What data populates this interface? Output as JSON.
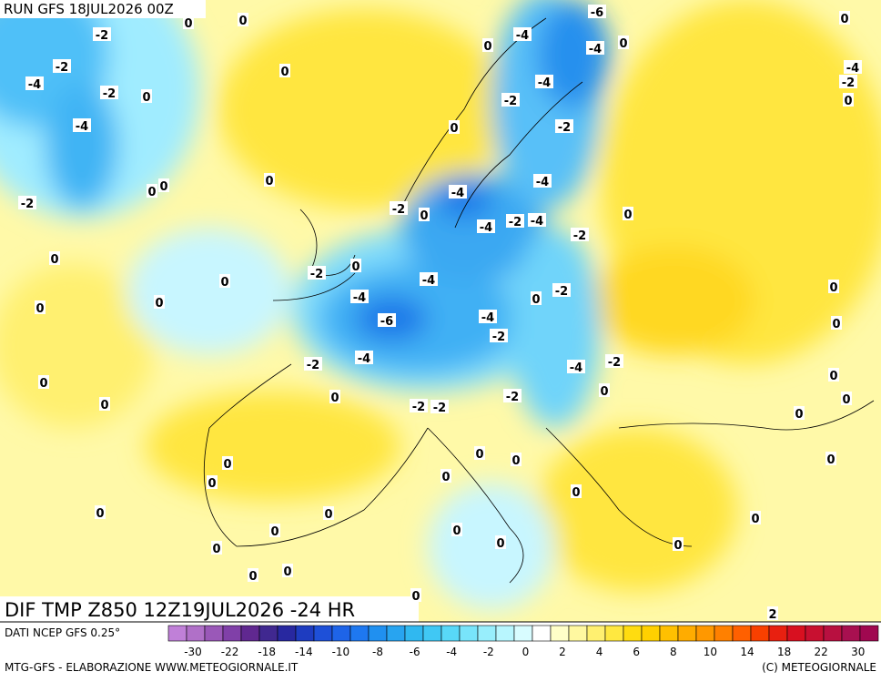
{
  "header": {
    "run": "RUN GFS 18JUL2026 00Z"
  },
  "map": {
    "title": "DIF TMP Z850 12Z19JUL2026 -24 HR",
    "contour_labels": [
      "-2",
      "0",
      "0",
      "-2",
      "-4",
      "-2",
      "0",
      "-4",
      "0",
      "0",
      "0",
      "0",
      "-2",
      "0",
      "0",
      "0",
      "0",
      "-2",
      "0",
      "-4",
      "-6",
      "-4",
      "-2",
      "0",
      "0",
      "0",
      "-4",
      "-2",
      "0",
      "-4",
      "-4",
      "-2",
      "-4",
      "-2",
      "0",
      "-4",
      "-2",
      "-4",
      "-4",
      "-6",
      "-4",
      "0",
      "0",
      "-2",
      "0",
      "0",
      "-2",
      "-4",
      "-2",
      "-4",
      "-2",
      "0",
      "-2",
      "-2",
      "-2",
      "0",
      "0",
      "0",
      "0",
      "0",
      "0",
      "0",
      "0",
      "0",
      "0",
      "0",
      "0",
      "0",
      "0",
      "0",
      "0",
      "0",
      "0",
      "0",
      "0",
      "0",
      "0",
      "0",
      "0",
      "-4",
      "-2",
      "0",
      "2"
    ]
  },
  "legend": {
    "source": "DATI NCEP GFS 0.25°",
    "labels": [
      -30,
      -22,
      -18,
      -14,
      -10,
      -8,
      -6,
      -4,
      -2,
      0,
      2,
      4,
      6,
      8,
      10,
      14,
      18,
      22,
      30
    ],
    "colors": [
      "#c080d8",
      "#b070c8",
      "#9a58b8",
      "#8040a8",
      "#602890",
      "#402890",
      "#2828a0",
      "#1e3cc0",
      "#1e50d8",
      "#1e64e8",
      "#1e78f0",
      "#2090f0",
      "#28a4f0",
      "#30b8f0",
      "#40c8f4",
      "#58d8f8",
      "#78e4fa",
      "#98eefc",
      "#b8f6fe",
      "#d8fcff",
      "#ffffff",
      "#ffffc8",
      "#fff8a0",
      "#fff070",
      "#ffe840",
      "#ffdc10",
      "#ffd000",
      "#ffc000",
      "#ffac00",
      "#ff9800",
      "#ff8000",
      "#ff6000",
      "#f84000",
      "#e82010",
      "#d81020",
      "#c81030",
      "#b81040",
      "#a81050",
      "#a00850"
    ]
  },
  "footer": {
    "left": "MTG-GFS - ELABORAZIONE WWW.METEOGIORNALE.IT",
    "right": "(C) METEOGIORNALE"
  }
}
